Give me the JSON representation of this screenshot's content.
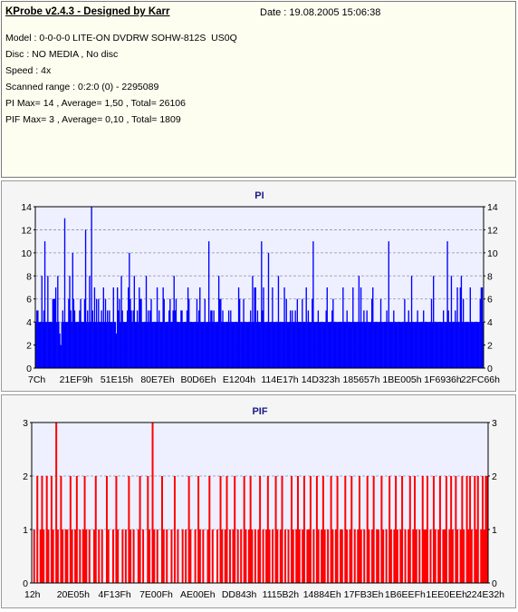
{
  "header": {
    "title": "KProbe v2.4.3 - Designed by Karr",
    "date": "Date : 19.08.2005 15:06:38",
    "lines": [
      "Model : 0-0-0-0 LITE-ON DVDRW SOHW-812S  US0Q",
      "Disc : NO MEDIA , No disc",
      "Speed : 4x",
      "Scanned range : 0:2:0 (0) - 2295089",
      "PI Max= 14 , Average= 1,50 , Total= 26106",
      "PIF Max= 3 , Average= 0,10 , Total= 1809"
    ]
  },
  "chart_data": [
    {
      "type": "bar",
      "title": "PI",
      "ylim": [
        0,
        14
      ],
      "yticks": [
        "0",
        "2",
        "4",
        "6",
        "8",
        "10",
        "12",
        "14"
      ],
      "xticks": [
        "7Ch",
        "21EF9h",
        "51E15h",
        "80E7Eh",
        "B0D6Eh",
        "E1204h",
        "114E17h",
        "14D323h",
        "185657h",
        "1BE005h",
        "1F6936h",
        "22FC66h"
      ],
      "color": "#0000ff",
      "grid": true,
      "values": [
        4,
        5,
        5,
        4,
        4,
        4,
        8,
        4,
        5,
        11,
        4,
        4,
        8,
        4,
        4,
        4,
        4,
        6,
        6,
        6,
        7,
        4,
        8,
        4,
        3,
        2,
        4,
        5,
        4,
        13,
        4,
        4,
        4,
        6,
        8,
        5,
        4,
        10,
        6,
        5,
        4,
        4,
        4,
        4,
        5,
        6,
        4,
        4,
        4,
        6,
        12,
        4,
        5,
        4,
        8,
        4,
        14,
        5,
        4,
        7,
        4,
        6,
        4,
        6,
        4,
        4,
        5,
        4,
        7,
        4,
        6,
        4,
        5,
        4,
        5,
        4,
        4,
        4,
        7,
        4,
        4,
        3,
        7,
        5,
        6,
        4,
        8,
        5,
        4,
        4,
        4,
        4,
        5,
        7,
        10,
        6,
        5,
        4,
        5,
        8,
        4,
        4,
        5,
        4,
        7,
        6,
        6,
        4,
        4,
        4,
        4,
        8,
        4,
        5,
        4,
        5,
        6,
        4,
        4,
        4,
        4,
        4,
        7,
        4,
        5,
        4,
        4,
        4,
        7,
        6,
        4,
        4,
        4,
        4,
        5,
        6,
        4,
        4,
        5,
        8,
        5,
        6,
        4,
        4,
        4,
        4,
        5,
        5,
        4,
        4,
        4,
        4,
        5,
        7,
        6,
        4,
        4,
        4,
        4,
        4,
        4,
        4,
        6,
        4,
        5,
        7,
        4,
        4,
        4,
        4,
        6,
        4,
        4,
        4,
        11,
        4,
        5,
        5,
        4,
        5,
        4,
        4,
        4,
        4,
        8,
        6,
        6,
        4,
        5,
        4,
        4,
        4,
        4,
        4,
        5,
        4,
        5,
        4,
        4,
        4,
        4,
        4,
        4,
        4,
        7,
        6,
        4,
        4,
        4,
        6,
        4,
        4,
        4,
        4,
        4,
        4,
        5,
        4,
        8,
        4,
        7,
        7,
        4,
        5,
        4,
        4,
        4,
        11,
        5,
        7,
        4,
        4,
        4,
        4,
        10,
        4,
        4,
        4,
        7,
        4,
        4,
        4,
        4,
        4,
        8,
        4,
        4,
        4,
        4,
        4,
        7,
        4,
        6,
        4,
        4,
        4,
        5,
        4,
        5,
        4,
        4,
        5,
        4,
        6,
        4,
        4,
        4,
        4,
        6,
        4,
        4,
        4,
        7,
        4,
        5,
        4,
        4,
        4,
        6,
        11,
        4,
        4,
        4,
        4,
        5,
        4,
        4,
        4,
        4,
        4,
        4,
        4,
        5,
        7,
        4,
        4,
        4,
        4,
        5,
        6,
        4,
        4,
        4,
        4,
        4,
        4,
        4,
        4,
        4,
        7,
        4,
        4,
        4,
        5,
        4,
        4,
        4,
        4,
        4,
        7,
        4,
        4,
        4,
        4,
        4,
        8,
        4,
        7,
        4,
        4,
        5,
        4,
        4,
        5,
        4,
        4,
        4,
        4,
        6,
        7,
        4,
        4,
        4,
        4,
        4,
        4,
        4,
        6,
        4,
        4,
        4,
        4,
        4,
        5,
        4,
        11,
        4,
        4,
        4,
        4,
        5,
        4,
        4,
        4,
        4,
        4,
        4,
        4,
        4,
        4,
        4,
        6,
        4,
        4,
        4,
        5,
        4,
        4,
        8,
        4,
        4,
        4,
        4,
        4,
        5,
        4,
        4,
        4,
        4,
        4,
        5,
        4,
        4,
        4,
        4,
        4,
        4,
        4,
        6,
        4,
        8,
        4,
        4,
        4,
        4,
        4,
        4,
        4,
        4,
        4,
        5,
        4,
        4,
        4,
        11,
        5,
        4,
        4,
        8,
        4,
        4,
        4,
        5,
        4,
        7,
        4,
        4,
        7,
        8,
        4,
        6,
        4,
        4,
        4,
        4,
        4,
        4,
        7,
        4,
        4,
        4,
        4,
        4,
        4,
        4,
        4,
        4,
        6,
        7,
        7,
        4
      ]
    },
    {
      "type": "bar",
      "title": "PIF",
      "ylim": [
        0,
        3
      ],
      "yticks": [
        "0",
        "1",
        "2",
        "3"
      ],
      "xticks": [
        "12h",
        "20E05h",
        "4F13Fh",
        "7E00Fh",
        "AE00Eh",
        "DD843h",
        "1115B2h",
        "14884Eh",
        "17FB3Eh",
        "1B6EEFh",
        "1EE0EEh",
        "224E32h"
      ],
      "color": "#ff0000",
      "grid": true,
      "values": [
        0,
        1,
        0,
        2,
        0,
        1,
        2,
        1,
        0,
        2,
        1,
        0,
        2,
        1,
        0,
        3,
        1,
        0,
        2,
        1,
        0,
        1,
        1,
        0,
        2,
        1,
        0,
        1,
        2,
        0,
        1,
        0,
        1,
        2,
        1,
        0,
        1,
        0,
        0,
        1,
        2,
        0,
        1,
        0,
        1,
        0,
        0,
        2,
        1,
        0,
        0,
        1,
        0,
        2,
        1,
        0,
        0,
        1,
        0,
        1,
        0,
        2,
        1,
        0,
        1,
        0,
        0,
        1,
        2,
        0,
        1,
        0,
        0,
        2,
        1,
        0,
        3,
        1,
        0,
        1,
        0,
        0,
        2,
        1,
        0,
        1,
        0,
        0,
        1,
        0,
        2,
        0,
        1,
        0,
        0,
        1,
        0,
        1,
        0,
        2,
        1,
        0,
        0,
        1,
        0,
        2,
        1,
        0,
        1,
        0,
        0,
        1,
        2,
        0,
        1,
        0,
        0,
        1,
        0,
        2,
        1,
        0,
        1,
        2,
        0,
        1,
        0,
        1,
        2,
        0,
        1,
        0,
        1,
        0,
        2,
        1,
        0,
        1,
        2,
        1,
        0,
        1,
        0,
        1,
        2,
        0,
        1,
        0,
        1,
        2,
        1,
        0,
        1,
        0,
        2,
        1,
        0,
        1,
        2,
        0,
        1,
        0,
        1,
        0,
        2,
        1,
        0,
        1,
        2,
        1,
        0,
        1,
        2,
        0,
        1,
        1,
        2,
        0,
        1,
        0,
        2,
        1,
        0,
        1,
        2,
        1,
        0,
        1,
        0,
        2,
        1,
        0,
        1,
        2,
        0,
        1,
        1,
        0,
        2,
        1,
        0,
        1,
        2,
        0,
        1,
        0,
        1,
        2,
        1,
        0,
        1,
        0,
        2,
        1,
        0,
        1,
        2,
        0,
        1,
        1,
        0,
        2,
        1,
        0,
        1,
        0,
        2,
        1,
        0,
        1,
        2,
        1,
        0,
        1,
        2,
        0,
        1,
        0,
        1,
        2,
        0,
        1,
        2,
        1,
        0,
        1,
        0,
        2,
        1,
        1,
        2,
        0,
        1,
        0,
        2,
        1,
        0,
        1,
        2,
        0,
        1,
        1,
        2,
        0,
        1,
        2,
        1,
        0,
        2,
        1,
        0,
        1,
        2,
        1,
        0,
        2,
        1,
        2,
        1,
        0,
        2,
        1,
        2,
        0,
        1,
        2,
        1,
        2,
        2
      ]
    }
  ]
}
